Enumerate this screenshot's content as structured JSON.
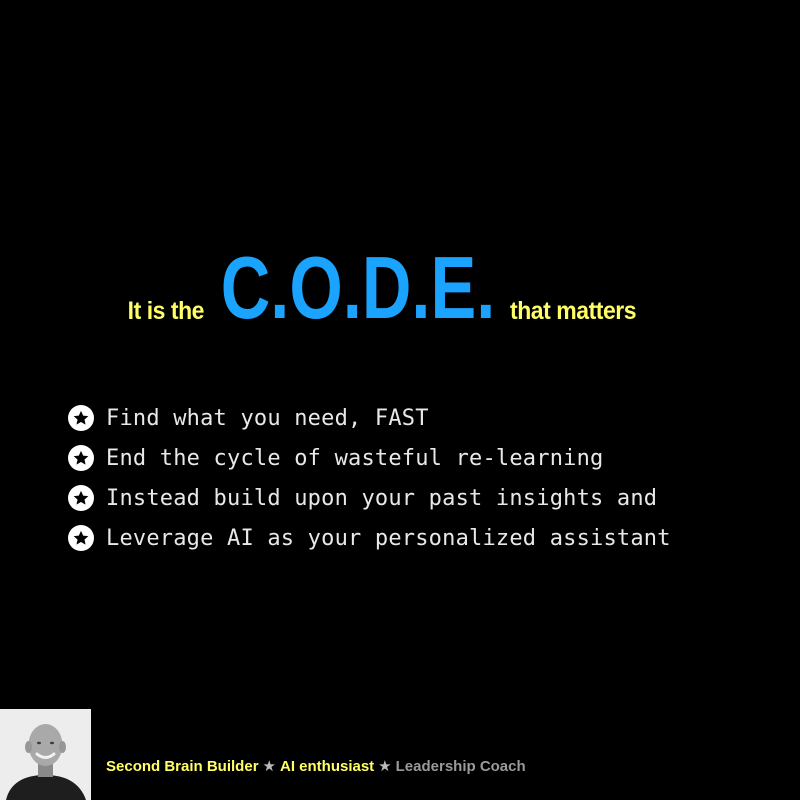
{
  "headline": {
    "prefix": "It is the",
    "emphasis": "C.O.D.E.",
    "suffix": "that matters",
    "prefix_color": "#FFFF66",
    "emphasis_color": "#1AA3FF"
  },
  "bullets": [
    {
      "icon": "circled-star-icon",
      "text": "Find what you need, FAST"
    },
    {
      "icon": "circled-star-icon",
      "text": "End the cycle of wasteful re-learning"
    },
    {
      "icon": "circled-star-icon",
      "text": "Instead build upon your past insights and"
    },
    {
      "icon": "circled-star-icon",
      "text": "Leverage AI as your personalized assistant"
    }
  ],
  "footer": {
    "roles": [
      "Second Brain Builder",
      "AI enthusiast",
      "Leadership Coach"
    ],
    "separator": "★",
    "colors": {
      "highlight": "#FFFF66",
      "muted": "#9A9A9A"
    }
  }
}
